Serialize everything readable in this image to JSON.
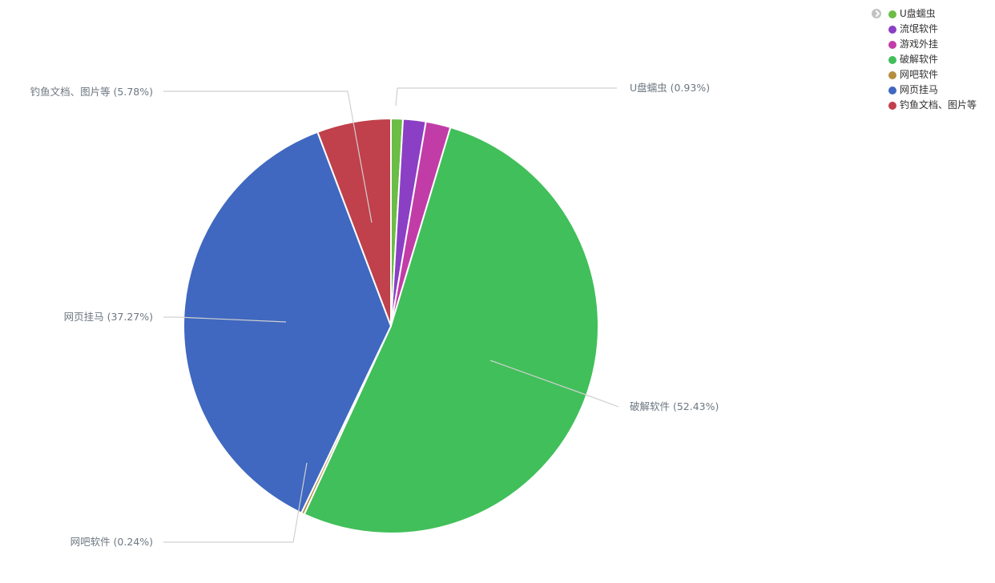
{
  "chart_data": {
    "type": "pie",
    "slices": [
      {
        "name": "U盘蠕虫",
        "value": 0.93,
        "label": "U盘蠕虫 (0.93%)",
        "color": "#6bbd45"
      },
      {
        "name": "流氓软件",
        "value": 1.78,
        "label": "",
        "color": "#8b3fc4"
      },
      {
        "name": "游戏外挂",
        "value": 1.94,
        "label": "",
        "color": "#c23ca8"
      },
      {
        "name": "破解软件",
        "value": 52.43,
        "label": "破解软件 (52.43%)",
        "color": "#41bf5a"
      },
      {
        "name": "网吧软件",
        "value": 0.24,
        "label": "网吧软件 (0.24%)",
        "color": "#b58e3f"
      },
      {
        "name": "网页挂马",
        "value": 37.27,
        "label": "网页挂马 (37.27%)",
        "color": "#4068c0"
      },
      {
        "name": "钓鱼文档、图片等",
        "value": 5.78,
        "label": "钓鱼文档、图片等 (5.78%)",
        "color": "#c0404b"
      }
    ],
    "legend": {
      "position": "top-right"
    }
  }
}
